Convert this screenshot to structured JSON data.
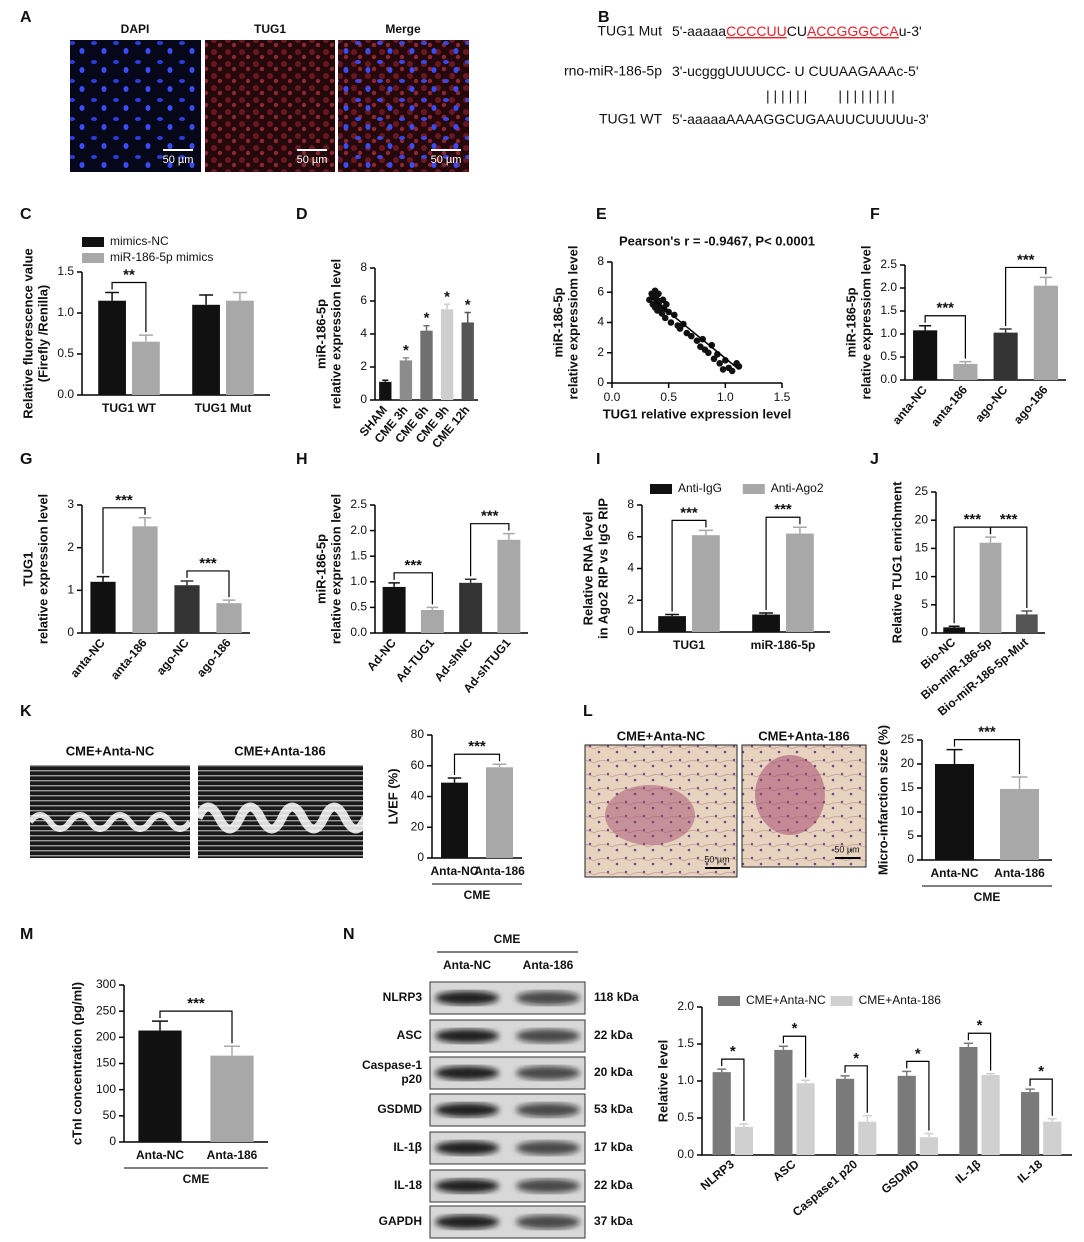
{
  "panel_letters": [
    "A",
    "B",
    "C",
    "D",
    "E",
    "F",
    "G",
    "H",
    "I",
    "J",
    "K",
    "L",
    "M",
    "N"
  ],
  "panel_a": {
    "labels": [
      "DAPI",
      "TUG1",
      "Merge"
    ],
    "scale_bar": "50 µm"
  },
  "panel_b": {
    "rows": [
      {
        "name": "TUG1 Mut",
        "parts": [
          {
            "text": "5'-aaaaa"
          },
          {
            "text": "CCCCUU",
            "color": "#e8202a"
          },
          {
            "text": "CU"
          },
          {
            "text": "ACCGGGCCA",
            "color": "#e8202a"
          },
          {
            "text": "u-3'"
          }
        ]
      },
      {
        "name": "rno-miR-186-5p",
        "parts": [
          {
            "text": "3'-ucgggUUUUCC- U CUUAAGAAAc-5'"
          }
        ]
      },
      {
        "name": "TUG1 WT",
        "parts": [
          {
            "text": "5'-aaaaaAAAAGGCUGAAUUCUUUUu-3'"
          }
        ]
      }
    ],
    "pairing": "| | | | | |        | | | | | | | |"
  },
  "panel_k_images": {
    "labels": [
      "CME+Anta-NC",
      "CME+Anta-186"
    ]
  },
  "panel_l_images": {
    "labels": [
      "CME+Anta-NC",
      "CME+Anta-186"
    ],
    "scale_bar": "50 µm"
  },
  "panel_n_blot": {
    "header": "CME",
    "lanes": [
      "Anta-NC",
      "Anta-186"
    ],
    "rows": [
      {
        "protein": [
          "NLRP3"
        ],
        "size": "118 kDa"
      },
      {
        "protein": [
          "ASC"
        ],
        "size": "22 kDa"
      },
      {
        "protein": [
          "Caspase-1",
          "p20"
        ],
        "size": "20 kDa"
      },
      {
        "protein": [
          "GSDMD"
        ],
        "size": "53 kDa"
      },
      {
        "protein": [
          "IL-1β"
        ],
        "size": "17 kDa"
      },
      {
        "protein": [
          "IL-18"
        ],
        "size": "22 kDa"
      },
      {
        "protein": [
          "GAPDH"
        ],
        "size": "37 kDa"
      }
    ]
  },
  "chart_data": [
    {
      "type": "bar",
      "ylabel": [
        "Relative fluorescence value",
        "(Firefly /Renilla)"
      ],
      "categories": [
        "TUG1 WT",
        "TUG1 Mut"
      ],
      "series": [
        {
          "name": "mimics-NC",
          "color": "#111111",
          "values": [
            1.15,
            1.1
          ],
          "errors": [
            0.1,
            0.12
          ]
        },
        {
          "name": "miR-186-5p mimics",
          "color": "#a8a8a8",
          "values": [
            0.65,
            1.15
          ],
          "errors": [
            0.08,
            0.1
          ]
        }
      ],
      "ylim": [
        0,
        1.5
      ],
      "yticks": [
        {
          "value": 0,
          "label": "0.0"
        },
        0.5,
        {
          "value": 1,
          "label": "1.0"
        },
        1.5
      ],
      "legend": "top-left",
      "annotations": [
        {
          "text": "**",
          "category": "TUG1 WT"
        }
      ]
    },
    {
      "type": "bar",
      "ylabel": [
        "miR-186-5p",
        "relative expression level"
      ],
      "categories": [
        "SHAM",
        "CME 3h",
        "CME 6h",
        "CME 9h",
        "CME 12h"
      ],
      "values": [
        1.1,
        2.4,
        4.2,
        5.5,
        4.7
      ],
      "errors": [
        0.1,
        0.15,
        0.3,
        0.3,
        0.6
      ],
      "colors": [
        "#111111",
        "#8c8c8c",
        "#707070",
        "#cfcfcf",
        "#555555"
      ],
      "ylim": [
        0,
        8
      ],
      "yticks": [
        0,
        2,
        4,
        6,
        8
      ],
      "xtick_rotation": 50,
      "annotations": [
        {
          "text": "*",
          "category": "CME 3h"
        },
        {
          "text": "*",
          "category": "CME 6h"
        },
        {
          "text": "*",
          "category": "CME 9h"
        },
        {
          "text": "*",
          "category": "CME 12h"
        }
      ]
    },
    {
      "type": "scatter",
      "title": "Pearson's r = -0.9467, P< 0.0001",
      "xlabel": "TUG1 relative expression level",
      "ylabel": [
        "miR-186-5p",
        "relative expressiom level"
      ],
      "x": [
        0.33,
        0.35,
        0.36,
        0.37,
        0.38,
        0.38,
        0.39,
        0.4,
        0.4,
        0.41,
        0.42,
        0.43,
        0.44,
        0.45,
        0.46,
        0.47,
        0.48,
        0.5,
        0.52,
        0.55,
        0.58,
        0.6,
        0.63,
        0.66,
        0.7,
        0.75,
        0.78,
        0.8,
        0.82,
        0.85,
        0.88,
        0.9,
        0.93,
        0.95,
        0.98,
        1.0,
        1.03,
        1.06,
        1.1,
        1.12
      ],
      "values": [
        5.5,
        5.9,
        5.2,
        5.7,
        6.1,
        5.0,
        5.6,
        5.3,
        4.8,
        5.9,
        5.4,
        5.0,
        4.6,
        5.5,
        4.9,
        4.3,
        5.2,
        4.7,
        4.0,
        4.5,
        3.8,
        3.6,
        3.9,
        3.3,
        3.1,
        2.8,
        2.4,
        2.9,
        2.2,
        2.0,
        2.5,
        1.6,
        1.9,
        1.3,
        0.9,
        1.5,
        1.0,
        0.8,
        1.3,
        1.1
      ],
      "color": "#111111",
      "fit": {
        "x": [
          0.35,
          1.12
        ],
        "y": [
          5.6,
          0.9
        ]
      },
      "xlim": [
        0,
        1.5
      ],
      "xticks": [
        {
          "value": 0,
          "label": "0.0"
        },
        0.5,
        {
          "value": 1,
          "label": "1.0"
        },
        1.5
      ],
      "ylim": [
        0,
        8
      ],
      "yticks": [
        0,
        2,
        4,
        6,
        8
      ]
    },
    {
      "type": "bar",
      "ylabel": [
        "miR-186-5p",
        "relative expressiom level"
      ],
      "categories": [
        "anta-NC",
        "anta-186",
        "ago-NC",
        "ago-186"
      ],
      "values": [
        1.08,
        0.35,
        1.03,
        2.05
      ],
      "errors": [
        0.1,
        0.05,
        0.08,
        0.18
      ],
      "colors": [
        "#111111",
        "#a8a8a8",
        "#333333",
        "#a8a8a8"
      ],
      "ylim": [
        0,
        2.5
      ],
      "yticks": [
        {
          "value": 0,
          "label": "0.0"
        },
        0.5,
        {
          "value": 1,
          "label": "1.0"
        },
        1.5,
        {
          "value": 2,
          "label": "2.0"
        },
        2.5
      ],
      "xtick_rotation": 50,
      "annotations": [
        {
          "text": "***",
          "span": [
            "anta-NC",
            "anta-186"
          ]
        },
        {
          "text": "***",
          "span": [
            "ago-NC",
            "ago-186"
          ]
        }
      ]
    },
    {
      "type": "bar",
      "ylabel": [
        "TUG1",
        "relative expression level"
      ],
      "categories": [
        "anta-NC",
        "anta-186",
        "ago-NC",
        "ago-186"
      ],
      "values": [
        1.2,
        2.5,
        1.12,
        0.7
      ],
      "errors": [
        0.12,
        0.2,
        0.1,
        0.07
      ],
      "colors": [
        "#111111",
        "#a8a8a8",
        "#333333",
        "#a8a8a8"
      ],
      "ylim": [
        0,
        3
      ],
      "yticks": [
        0,
        1,
        2,
        3
      ],
      "xtick_rotation": 50,
      "annotations": [
        {
          "text": "***",
          "span": [
            "anta-NC",
            "anta-186"
          ]
        },
        {
          "text": "***",
          "span": [
            "ago-NC",
            "ago-186"
          ]
        }
      ]
    },
    {
      "type": "bar",
      "ylabel": [
        "miR-186-5p",
        "relative expression level"
      ],
      "categories": [
        "Ad-NC",
        "Ad-TUG1",
        "Ad-shNC",
        "Ad-shTUG1"
      ],
      "values": [
        0.9,
        0.45,
        0.98,
        1.82
      ],
      "errors": [
        0.08,
        0.05,
        0.07,
        0.12
      ],
      "colors": [
        "#111111",
        "#a8a8a8",
        "#333333",
        "#a8a8a8"
      ],
      "ylim": [
        0,
        2.5
      ],
      "yticks": [
        {
          "value": 0,
          "label": "0.0"
        },
        0.5,
        {
          "value": 1,
          "label": "1.0"
        },
        1.5,
        {
          "value": 2,
          "label": "2.0"
        },
        2.5
      ],
      "xtick_rotation": 50,
      "annotations": [
        {
          "text": "***",
          "span": [
            "Ad-NC",
            "Ad-TUG1"
          ]
        },
        {
          "text": "***",
          "span": [
            "Ad-shNC",
            "Ad-shTUG1"
          ]
        }
      ]
    },
    {
      "type": "bar",
      "ylabel": [
        "Relative RNA level",
        "in Ago2 RIP vs IgG RIP"
      ],
      "categories": [
        "TUG1",
        "miR-186-5p"
      ],
      "series": [
        {
          "name": "Anti-IgG",
          "color": "#111111",
          "values": [
            1.0,
            1.1
          ],
          "errors": [
            0.1,
            0.1
          ]
        },
        {
          "name": "Anti-Ago2",
          "color": "#a8a8a8",
          "values": [
            6.1,
            6.2
          ],
          "errors": [
            0.3,
            0.4
          ]
        }
      ],
      "ylim": [
        0,
        8
      ],
      "yticks": [
        0,
        2,
        4,
        6,
        8
      ],
      "legend": "top-left",
      "annotations": [
        {
          "text": "***",
          "category": "TUG1"
        },
        {
          "text": "***",
          "category": "miR-186-5p"
        }
      ]
    },
    {
      "type": "bar",
      "ylabel": [
        "Relative TUG1 enrichment"
      ],
      "categories": [
        "Bio-NC",
        "Bio-miR-186-5p",
        "Bio-miR-186-5p-Mut"
      ],
      "values": [
        1.0,
        16,
        3.3
      ],
      "errors": [
        0.2,
        1.0,
        0.6
      ],
      "colors": [
        "#111111",
        "#a8a8a8",
        "#555555"
      ],
      "ylim": [
        0,
        25
      ],
      "yticks": [
        0,
        5,
        10,
        15,
        20,
        25
      ],
      "xtick_rotation": 40,
      "annotations": [
        {
          "text": "***",
          "span": [
            "Bio-NC",
            "Bio-miR-186-5p"
          ]
        },
        {
          "text": "***",
          "span": [
            "Bio-miR-186-5p",
            "Bio-miR-186-5p-Mut"
          ]
        }
      ]
    },
    {
      "type": "bar",
      "ylabel": [
        "LVEF (%)"
      ],
      "xlabel": "CME",
      "categories": [
        "Anta-NC",
        "Anta-186"
      ],
      "values": [
        49,
        59
      ],
      "errors": [
        3,
        2
      ],
      "colors": [
        "#111111",
        "#a8a8a8"
      ],
      "ylim": [
        0,
        80
      ],
      "yticks": [
        0,
        20,
        40,
        60,
        80
      ],
      "annotations": [
        {
          "text": "***",
          "span": [
            "Anta-NC",
            "Anta-186"
          ]
        }
      ]
    },
    {
      "type": "bar",
      "ylabel": [
        "Micro-infarction size (%)"
      ],
      "xlabel": "CME",
      "categories": [
        "Anta-NC",
        "Anta-186"
      ],
      "values": [
        20,
        14.8
      ],
      "errors": [
        3,
        2.5
      ],
      "colors": [
        "#111111",
        "#a8a8a8"
      ],
      "ylim": [
        0,
        25
      ],
      "yticks": [
        0,
        5,
        10,
        15,
        20,
        25
      ],
      "annotations": [
        {
          "text": "***",
          "span": [
            "Anta-NC",
            "Anta-186"
          ]
        }
      ]
    },
    {
      "type": "bar",
      "ylabel": [
        "cTnI concentration (pg/ml)"
      ],
      "xlabel": "CME",
      "categories": [
        "Anta-NC",
        "Anta-186"
      ],
      "values": [
        213,
        165
      ],
      "errors": [
        18,
        18
      ],
      "colors": [
        "#111111",
        "#a8a8a8"
      ],
      "ylim": [
        0,
        300
      ],
      "yticks": [
        0,
        50,
        100,
        150,
        200,
        250,
        300
      ],
      "annotations": [
        {
          "text": "***",
          "span": [
            "Anta-NC",
            "Anta-186"
          ]
        }
      ]
    },
    {
      "type": "bar",
      "ylabel": [
        "Relative level"
      ],
      "categories": [
        "NLRP3",
        "ASC",
        "Caspase1 p20",
        "GSDMD",
        "IL-1β",
        "IL-18"
      ],
      "series": [
        {
          "name": "CME+Anta-NC",
          "color": "#7a7a7a",
          "values": [
            1.12,
            1.42,
            1.03,
            1.07,
            1.46,
            0.85
          ],
          "errors": [
            0.04,
            0.05,
            0.04,
            0.06,
            0.05,
            0.04
          ]
        },
        {
          "name": "CME+Anta-186",
          "color": "#d0d0d0",
          "values": [
            0.38,
            0.97,
            0.45,
            0.24,
            1.08,
            0.45
          ],
          "errors": [
            0.04,
            0.04,
            0.08,
            0.05,
            0.02,
            0.04
          ]
        }
      ],
      "ylim": [
        0,
        2
      ],
      "yticks": [
        {
          "value": 0,
          "label": "0.0"
        },
        0.5,
        {
          "value": 1,
          "label": "1.0"
        },
        1.5,
        {
          "value": 2,
          "label": "2.0"
        }
      ],
      "xtick_rotation": 40,
      "legend": "top",
      "annotations": [
        {
          "text": "*",
          "category": "NLRP3"
        },
        {
          "text": "*",
          "category": "ASC"
        },
        {
          "text": "*",
          "category": "Caspase1 p20"
        },
        {
          "text": "*",
          "category": "GSDMD"
        },
        {
          "text": "*",
          "category": "IL-1β"
        },
        {
          "text": "*",
          "category": "IL-18"
        }
      ]
    }
  ]
}
